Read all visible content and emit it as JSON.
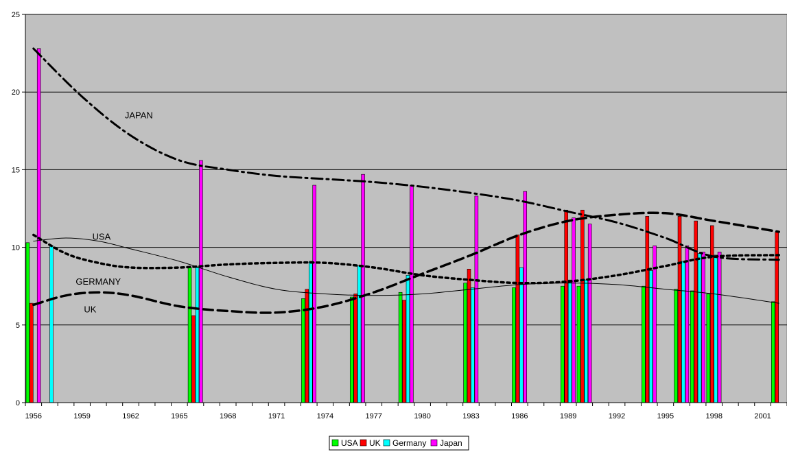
{
  "chart_data": {
    "type": "bar",
    "title": "",
    "xlabel": "",
    "ylabel": "",
    "ylim": [
      0,
      25
    ],
    "y_ticks": [
      "0",
      "5",
      "10",
      "15",
      "20",
      "25"
    ],
    "x_tick_labels": [
      "1956",
      "1959",
      "1962",
      "1965",
      "1968",
      "1971",
      "1974",
      "1977",
      "1980",
      "1983",
      "1986",
      "1989",
      "1992",
      "1995",
      "1998",
      "2001"
    ],
    "x_categories": [
      "1956",
      "1957",
      "1958",
      "1959",
      "1960",
      "1961",
      "1962",
      "1963",
      "1964",
      "1965",
      "1966",
      "1967",
      "1968",
      "1969",
      "1970",
      "1971",
      "1972",
      "1973",
      "1974",
      "1975",
      "1976",
      "1977",
      "1978",
      "1979",
      "1980",
      "1981",
      "1982",
      "1983",
      "1984",
      "1985",
      "1986",
      "1987",
      "1988",
      "1989",
      "1990",
      "1991",
      "1992",
      "1993",
      "1994",
      "1995",
      "1996",
      "1997",
      "1998",
      "1999",
      "2000",
      "2001",
      "2002"
    ],
    "grid": true,
    "legend_position": "bottom",
    "plot_background": "#c0c0c0",
    "series": [
      {
        "name": "USA",
        "color": "#00ff00",
        "points": [
          [
            1956,
            10.3
          ],
          [
            1966,
            8.7
          ],
          [
            1973,
            6.7
          ],
          [
            1976,
            6.8
          ],
          [
            1979,
            7.1
          ],
          [
            1983,
            7.7
          ],
          [
            1986,
            7.4
          ],
          [
            1989,
            7.5
          ],
          [
            1990,
            7.5
          ],
          [
            1994,
            7.5
          ],
          [
            1996,
            7.3
          ],
          [
            1997,
            7.2
          ],
          [
            1998,
            7.0
          ],
          [
            2002,
            6.5
          ]
        ]
      },
      {
        "name": "UK",
        "color": "#ff0000",
        "points": [
          [
            1956,
            6.4
          ],
          [
            1966,
            5.6
          ],
          [
            1973,
            7.3
          ],
          [
            1976,
            7.0
          ],
          [
            1979,
            6.6
          ],
          [
            1983,
            8.6
          ],
          [
            1986,
            10.8
          ],
          [
            1989,
            12.4
          ],
          [
            1990,
            12.4
          ],
          [
            1994,
            12.0
          ],
          [
            1996,
            12.0
          ],
          [
            1997,
            11.7
          ],
          [
            1998,
            11.4
          ],
          [
            2002,
            11.0
          ]
        ]
      },
      {
        "name": "Germany",
        "color": "#00ffff",
        "points": [
          [
            1957,
            10.1
          ],
          [
            1966,
            8.7
          ],
          [
            1973,
            9.1
          ],
          [
            1976,
            8.8
          ],
          [
            1979,
            8.2
          ],
          [
            1983,
            7.4
          ],
          [
            1986,
            8.7
          ],
          [
            1989,
            7.9
          ],
          [
            1990,
            7.9
          ],
          [
            1994,
            8.5
          ],
          [
            1996,
            9.1
          ],
          [
            1997,
            9.6
          ],
          [
            1998,
            9.5
          ]
        ]
      },
      {
        "name": "Japan",
        "color": "#ff00ff",
        "points": [
          [
            1956,
            22.8
          ],
          [
            1966,
            15.6
          ],
          [
            1973,
            14.0
          ],
          [
            1976,
            14.7
          ],
          [
            1979,
            14.0
          ],
          [
            1983,
            13.3
          ],
          [
            1986,
            13.6
          ],
          [
            1989,
            11.9
          ],
          [
            1990,
            11.5
          ],
          [
            1994,
            10.1
          ],
          [
            1996,
            10.1
          ],
          [
            1997,
            9.7
          ],
          [
            1998,
            9.7
          ]
        ]
      }
    ],
    "trend_lines": [
      {
        "label": "JAPAN",
        "style": "dash-dot",
        "points": [
          [
            1956,
            22.8
          ],
          [
            1959,
            19.7
          ],
          [
            1962,
            17.2
          ],
          [
            1965,
            15.6
          ],
          [
            1968,
            15.0
          ],
          [
            1971,
            14.6
          ],
          [
            1974,
            14.4
          ],
          [
            1977,
            14.2
          ],
          [
            1980,
            13.9
          ],
          [
            1983,
            13.5
          ],
          [
            1986,
            13.0
          ],
          [
            1989,
            12.3
          ],
          [
            1992,
            11.6
          ],
          [
            1995,
            10.6
          ],
          [
            1998,
            9.4
          ],
          [
            2002,
            9.2
          ]
        ]
      },
      {
        "label": "USA",
        "style": "solid",
        "points": [
          [
            1956,
            10.4
          ],
          [
            1958,
            10.6
          ],
          [
            1960,
            10.4
          ],
          [
            1962,
            9.9
          ],
          [
            1965,
            9.1
          ],
          [
            1968,
            8.1
          ],
          [
            1971,
            7.3
          ],
          [
            1974,
            7.0
          ],
          [
            1977,
            6.9
          ],
          [
            1980,
            7.0
          ],
          [
            1983,
            7.3
          ],
          [
            1986,
            7.6
          ],
          [
            1989,
            7.7
          ],
          [
            1992,
            7.6
          ],
          [
            1995,
            7.3
          ],
          [
            1998,
            7.0
          ],
          [
            2002,
            6.4
          ]
        ]
      },
      {
        "label": "GERMANY",
        "style": "dotted",
        "points": [
          [
            1956,
            10.8
          ],
          [
            1958,
            9.6
          ],
          [
            1960,
            9.0
          ],
          [
            1962,
            8.7
          ],
          [
            1965,
            8.7
          ],
          [
            1968,
            8.9
          ],
          [
            1971,
            9.0
          ],
          [
            1974,
            9.0
          ],
          [
            1977,
            8.7
          ],
          [
            1980,
            8.2
          ],
          [
            1983,
            7.9
          ],
          [
            1986,
            7.7
          ],
          [
            1989,
            7.8
          ],
          [
            1992,
            8.2
          ],
          [
            1995,
            8.8
          ],
          [
            1998,
            9.4
          ],
          [
            2002,
            9.5
          ]
        ]
      },
      {
        "label": "UK",
        "style": "dashed",
        "points": [
          [
            1956,
            6.3
          ],
          [
            1958,
            6.9
          ],
          [
            1960,
            7.1
          ],
          [
            1962,
            6.9
          ],
          [
            1965,
            6.2
          ],
          [
            1968,
            5.9
          ],
          [
            1971,
            5.8
          ],
          [
            1974,
            6.2
          ],
          [
            1977,
            7.1
          ],
          [
            1980,
            8.3
          ],
          [
            1983,
            9.5
          ],
          [
            1986,
            10.8
          ],
          [
            1989,
            11.7
          ],
          [
            1992,
            12.1
          ],
          [
            1995,
            12.2
          ],
          [
            1998,
            11.7
          ],
          [
            2002,
            11.0
          ]
        ]
      }
    ],
    "annotations": [
      {
        "text": "JAPAN",
        "x": 1962.5,
        "y": 18.3
      },
      {
        "text": "USA",
        "x": 1960.2,
        "y": 10.5
      },
      {
        "text": "GERMANY",
        "x": 1960.0,
        "y": 7.6
      },
      {
        "text": "UK",
        "x": 1959.5,
        "y": 5.8
      }
    ],
    "legend": [
      "USA",
      "UK",
      "Germany",
      "Japan"
    ]
  }
}
